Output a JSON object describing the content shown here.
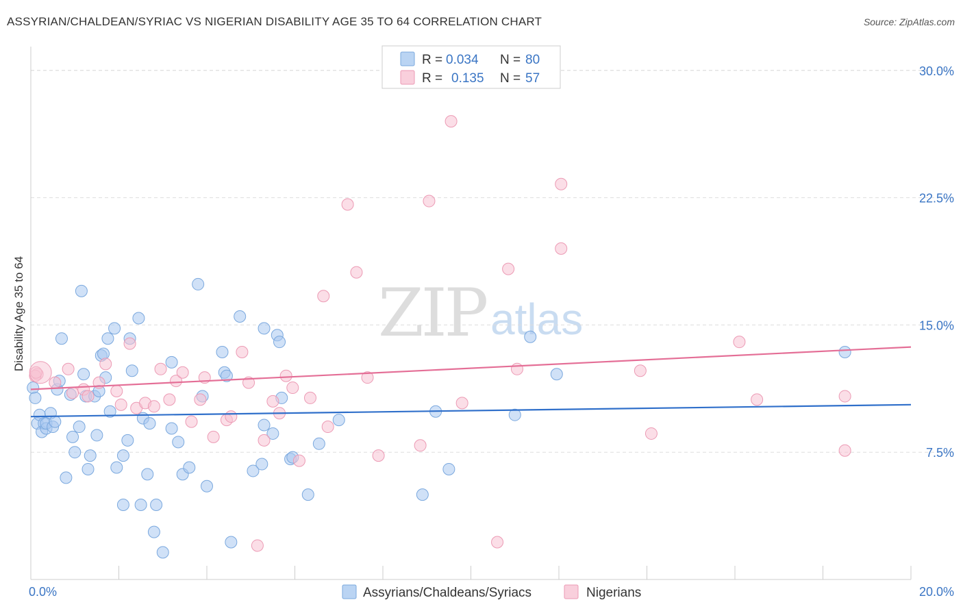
{
  "title": "ASSYRIAN/CHALDEAN/SYRIAC VS NIGERIAN DISABILITY AGE 35 TO 64 CORRELATION CHART",
  "source": "Source: ZipAtlas.com",
  "watermark": {
    "zip": "ZIP",
    "atlas": "atlas"
  },
  "legend": {
    "rows": [
      {
        "r_label": "R =",
        "r_value": "0.034",
        "n_label": "N =",
        "n_value": "80",
        "color": "#a9c9f0"
      },
      {
        "r_label": "R =",
        "r_value": "0.135",
        "n_label": "N =",
        "n_value": "57",
        "color": "#f5b9cc"
      }
    ]
  },
  "bottom_legend": [
    {
      "label": "Assyrians/Chaldeans/Syriacs",
      "color": "#a9c9f0"
    },
    {
      "label": "Nigerians",
      "color": "#f5b9cc"
    }
  ],
  "colors": {
    "blue_fill": "#a9c9f0",
    "blue_stroke": "#7aa8de",
    "blue_line": "#2f6fca",
    "pink_fill": "#f7c3d3",
    "pink_stroke": "#ec9ab4",
    "pink_line": "#e46e96",
    "tick_label": "#3a75c4",
    "grid": "#dddddd"
  },
  "chart_data": {
    "type": "scatter",
    "title": "ASSYRIAN/CHALDEAN/SYRIAC VS NIGERIAN DISABILITY AGE 35 TO 64 CORRELATION CHART",
    "xlabel": "",
    "ylabel": "Disability Age 35 to 64",
    "xlim": [
      0,
      20
    ],
    "ylim": [
      0,
      31
    ],
    "x_tick_labels": [
      "0.0%",
      "20.0%"
    ],
    "y_ticks": [
      7.5,
      15.0,
      22.5,
      30.0
    ],
    "y_tick_labels": [
      "7.5%",
      "15.0%",
      "22.5%",
      "30.0%"
    ],
    "grid": "horizontal dashed",
    "legend_position": "top-center",
    "series": [
      {
        "name": "Assyrians/Chaldeans/Syriacs",
        "r": 0.034,
        "n": 80,
        "trend": {
          "x": [
            0,
            20
          ],
          "y": [
            9.6,
            10.3
          ]
        },
        "points": [
          [
            0.05,
            11.3
          ],
          [
            0.1,
            10.7
          ],
          [
            0.15,
            9.2
          ],
          [
            0.2,
            9.7
          ],
          [
            0.25,
            8.7
          ],
          [
            0.3,
            9.2
          ],
          [
            0.35,
            8.9
          ],
          [
            0.35,
            9.2
          ],
          [
            0.45,
            9.8
          ],
          [
            0.5,
            9.0
          ],
          [
            0.55,
            9.3
          ],
          [
            0.6,
            11.2
          ],
          [
            0.65,
            11.7
          ],
          [
            0.7,
            14.2
          ],
          [
            0.8,
            6.0
          ],
          [
            0.9,
            10.9
          ],
          [
            0.95,
            8.4
          ],
          [
            1.0,
            7.5
          ],
          [
            1.1,
            9.0
          ],
          [
            1.15,
            17.0
          ],
          [
            1.2,
            12.1
          ],
          [
            1.25,
            10.8
          ],
          [
            1.3,
            6.5
          ],
          [
            1.35,
            7.3
          ],
          [
            1.45,
            10.8
          ],
          [
            1.5,
            8.5
          ],
          [
            1.55,
            11.1
          ],
          [
            1.6,
            13.2
          ],
          [
            1.65,
            13.3
          ],
          [
            1.7,
            11.9
          ],
          [
            1.75,
            14.2
          ],
          [
            1.8,
            9.9
          ],
          [
            1.9,
            14.8
          ],
          [
            1.95,
            6.6
          ],
          [
            2.1,
            4.4
          ],
          [
            2.1,
            7.3
          ],
          [
            2.2,
            8.2
          ],
          [
            2.25,
            14.2
          ],
          [
            2.3,
            12.3
          ],
          [
            2.45,
            15.4
          ],
          [
            2.5,
            4.4
          ],
          [
            2.55,
            9.5
          ],
          [
            2.65,
            6.2
          ],
          [
            2.7,
            9.2
          ],
          [
            2.8,
            2.8
          ],
          [
            2.85,
            4.4
          ],
          [
            3.0,
            1.6
          ],
          [
            3.2,
            8.9
          ],
          [
            3.2,
            12.8
          ],
          [
            3.35,
            8.1
          ],
          [
            3.45,
            6.2
          ],
          [
            3.6,
            6.6
          ],
          [
            3.8,
            17.4
          ],
          [
            3.9,
            10.8
          ],
          [
            4.0,
            5.5
          ],
          [
            4.35,
            13.4
          ],
          [
            4.4,
            12.2
          ],
          [
            4.45,
            12.0
          ],
          [
            4.55,
            2.2
          ],
          [
            4.75,
            15.5
          ],
          [
            5.05,
            6.4
          ],
          [
            5.25,
            6.8
          ],
          [
            5.3,
            14.8
          ],
          [
            5.3,
            9.1
          ],
          [
            5.5,
            8.6
          ],
          [
            5.6,
            14.4
          ],
          [
            5.65,
            14.0
          ],
          [
            5.7,
            10.7
          ],
          [
            5.9,
            7.1
          ],
          [
            5.95,
            7.2
          ],
          [
            6.3,
            5.0
          ],
          [
            6.55,
            8.0
          ],
          [
            7.0,
            9.4
          ],
          [
            8.9,
            5.0
          ],
          [
            9.2,
            9.9
          ],
          [
            9.5,
            6.5
          ],
          [
            11.0,
            9.7
          ],
          [
            11.35,
            14.3
          ],
          [
            11.95,
            12.1
          ],
          [
            18.5,
            13.4
          ]
        ]
      },
      {
        "name": "Nigerians",
        "r": 0.135,
        "n": 57,
        "trend": {
          "x": [
            0,
            20
          ],
          "y": [
            11.2,
            13.7
          ]
        },
        "points": [
          [
            0.15,
            12.1
          ],
          [
            0.55,
            11.6
          ],
          [
            0.85,
            12.4
          ],
          [
            0.95,
            11.0
          ],
          [
            1.2,
            11.2
          ],
          [
            1.3,
            10.8
          ],
          [
            1.55,
            11.6
          ],
          [
            1.7,
            12.7
          ],
          [
            1.95,
            11.1
          ],
          [
            2.05,
            10.3
          ],
          [
            2.25,
            13.9
          ],
          [
            2.4,
            10.1
          ],
          [
            2.6,
            10.4
          ],
          [
            2.8,
            10.2
          ],
          [
            2.95,
            12.4
          ],
          [
            3.15,
            10.6
          ],
          [
            3.3,
            11.7
          ],
          [
            3.45,
            12.2
          ],
          [
            3.65,
            9.3
          ],
          [
            3.85,
            10.6
          ],
          [
            3.95,
            11.9
          ],
          [
            4.15,
            8.4
          ],
          [
            4.45,
            9.4
          ],
          [
            4.55,
            9.6
          ],
          [
            4.8,
            13.4
          ],
          [
            4.95,
            11.6
          ],
          [
            5.15,
            2.0
          ],
          [
            5.3,
            8.2
          ],
          [
            5.5,
            10.5
          ],
          [
            5.65,
            9.8
          ],
          [
            5.8,
            12.0
          ],
          [
            5.95,
            11.3
          ],
          [
            6.1,
            7.0
          ],
          [
            6.35,
            10.7
          ],
          [
            6.65,
            16.7
          ],
          [
            6.75,
            9.0
          ],
          [
            7.2,
            22.1
          ],
          [
            7.4,
            18.1
          ],
          [
            7.65,
            11.9
          ],
          [
            7.9,
            7.3
          ],
          [
            8.85,
            7.9
          ],
          [
            9.05,
            22.3
          ],
          [
            9.55,
            27.0
          ],
          [
            9.8,
            10.4
          ],
          [
            10.6,
            2.2
          ],
          [
            10.85,
            18.3
          ],
          [
            11.05,
            12.4
          ],
          [
            12.05,
            23.3
          ],
          [
            12.05,
            19.5
          ],
          [
            13.85,
            12.3
          ],
          [
            14.1,
            8.6
          ],
          [
            16.1,
            14.0
          ],
          [
            16.5,
            10.6
          ],
          [
            18.5,
            10.8
          ],
          [
            18.5,
            7.6
          ],
          [
            0.1,
            12.0
          ],
          [
            0.12,
            12.2
          ]
        ]
      }
    ]
  }
}
